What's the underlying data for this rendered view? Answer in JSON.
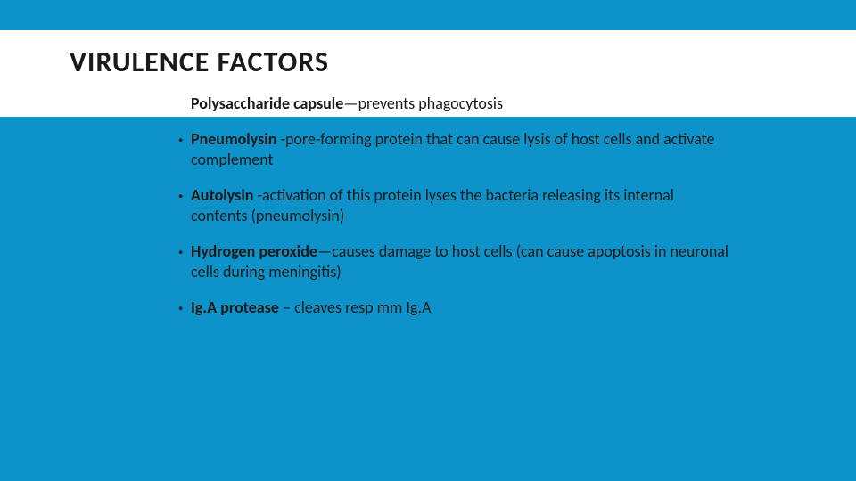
{
  "slide": {
    "background_color": "#0d93c9",
    "text_color": "#1a1a1a",
    "white_band_color": "#ffffff",
    "title": "VIRULENCE FACTORS",
    "title_fontsize": 32,
    "title_fontweight": 700,
    "first_line": {
      "bold": "Polysaccharide capsule",
      "rest": "—prevents phagocytosis"
    },
    "body_fontsize": 18,
    "bullets": [
      {
        "bold": "Pneumolysin ",
        "rest": "-pore-forming protein that can cause lysis of host cells and activate complement"
      },
      {
        "bold": "Autolysin ",
        "rest": "-activation of this protein lyses the bacteria releasing its internal contents (pneumolysin)"
      },
      {
        "bold": "Hydrogen peroxide",
        "rest": "—causes damage to host cells (can cause apoptosis in neuronal cells during meningitis)"
      },
      {
        "bold": "Ig.A protease ",
        "rest": "– cleaves resp mm Ig.A"
      }
    ]
  }
}
